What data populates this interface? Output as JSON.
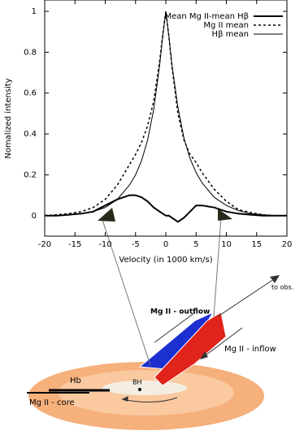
{
  "chart_data": {
    "type": "line",
    "xlabel": "Velocity (in 1000 km/s)",
    "ylabel": "Nomalized intensity",
    "x": [
      -20,
      -18,
      -16,
      -14,
      -12,
      -10,
      -8,
      -6,
      -5,
      -4,
      -3,
      -2,
      -1,
      -0.5,
      0,
      0.5,
      1,
      2,
      3,
      4,
      5,
      6,
      8,
      10,
      12,
      14,
      16,
      18,
      20
    ],
    "series": [
      {
        "name": "Mean Mg II-mean Hβ",
        "color": "#000000",
        "style": "thick",
        "values": [
          0,
          0,
          0.005,
          0.01,
          0.02,
          0.05,
          0.08,
          0.1,
          0.1,
          0.09,
          0.07,
          0.04,
          0.02,
          0.01,
          0,
          0,
          -0.01,
          -0.03,
          -0.01,
          0.02,
          0.05,
          0.05,
          0.04,
          0.02,
          0.01,
          0.005,
          0,
          0,
          0
        ]
      },
      {
        "name": "Mg II mean",
        "color": "#000000",
        "style": "dashed",
        "values": [
          0,
          0.005,
          0.01,
          0.02,
          0.04,
          0.08,
          0.15,
          0.25,
          0.3,
          0.36,
          0.44,
          0.56,
          0.76,
          0.89,
          1,
          0.88,
          0.73,
          0.5,
          0.37,
          0.3,
          0.26,
          0.21,
          0.13,
          0.07,
          0.03,
          0.015,
          0.005,
          0,
          0
        ]
      },
      {
        "name": "Hβ mean",
        "color": "#000000",
        "style": "thin",
        "values": [
          0,
          0,
          0.005,
          0.01,
          0.02,
          0.04,
          0.08,
          0.15,
          0.2,
          0.27,
          0.37,
          0.52,
          0.74,
          0.88,
          1,
          0.88,
          0.74,
          0.53,
          0.38,
          0.28,
          0.21,
          0.16,
          0.09,
          0.05,
          0.025,
          0.01,
          0.005,
          0,
          0
        ]
      }
    ],
    "xlim": [
      -20,
      20
    ],
    "ylim": [
      -0.1,
      1
    ],
    "xticks": [
      -20,
      -15,
      -10,
      -5,
      0,
      5,
      10,
      15,
      20
    ],
    "yticks": [
      0,
      0.2,
      0.4,
      0.6,
      0.8,
      1
    ],
    "legend": "upper right"
  },
  "diagram": {
    "labels": [
      "Mg II - outflow",
      "Mg II - inflow",
      "to obs.",
      "Hb",
      "BH",
      "Mg II - core"
    ]
  }
}
